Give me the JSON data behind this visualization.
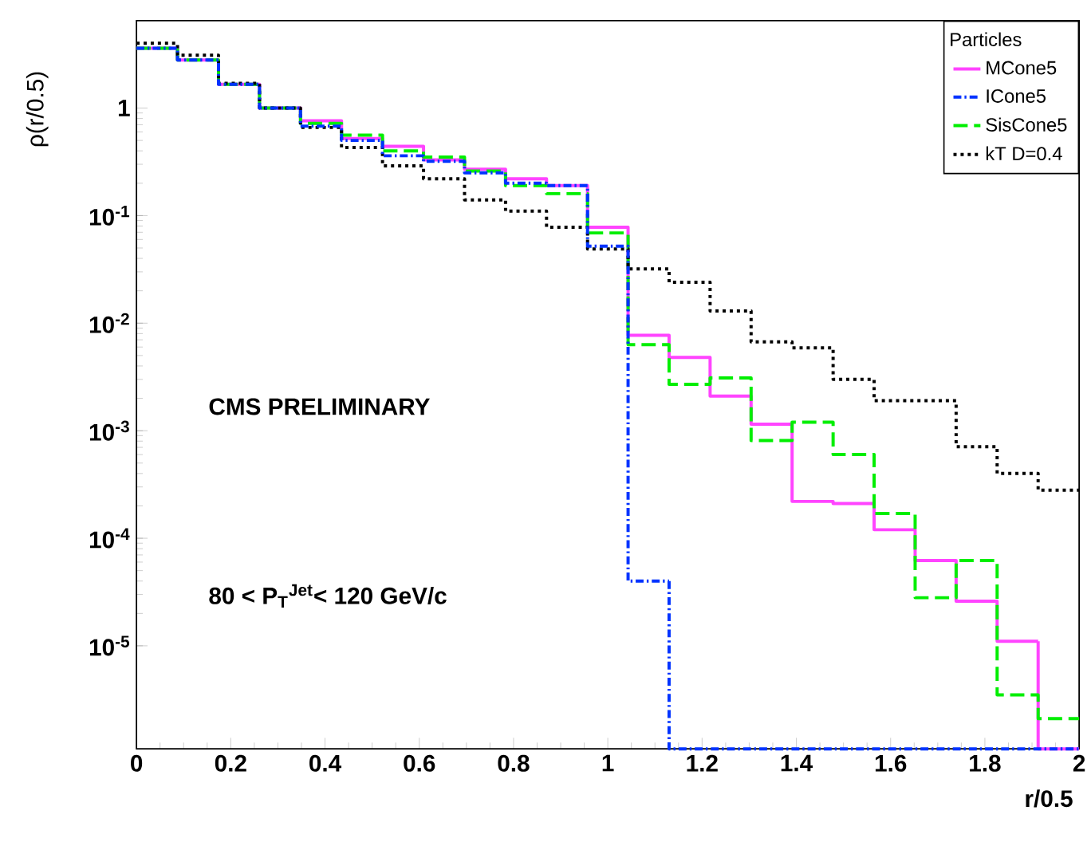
{
  "chart_data": {
    "type": "histogram",
    "xlabel": "r/0.5",
    "ylabel": "ρ(r/0.5)",
    "legend_title": "Particles",
    "annotations": [
      "CMS PRELIMINARY",
      "80 < P$_{T}$$^{Jet}$< 120 GeV/c"
    ],
    "bins": [
      0,
      0.087,
      0.174,
      0.261,
      0.348,
      0.435,
      0.522,
      0.609,
      0.696,
      0.783,
      0.87,
      0.957,
      1.043,
      1.13,
      1.217,
      1.304,
      1.391,
      1.478,
      1.565,
      1.652,
      1.739,
      1.826,
      1.913,
      2
    ],
    "series": [
      {
        "name": "MCone5",
        "color": "#ff44ff",
        "line_style": "solid",
        "values": [
          3.6,
          2.8,
          1.66,
          1.0,
          0.76,
          0.52,
          0.44,
          0.33,
          0.27,
          0.22,
          0.19,
          0.078,
          0.0077,
          0.0048,
          0.0021,
          0.00115,
          0.00022,
          0.00021,
          0.00012,
          6.2e-05,
          2.6e-05,
          1.1e-05,
          null
        ]
      },
      {
        "name": "ICone5",
        "color": "#0033ff",
        "line_style": "dashdot",
        "values": [
          3.6,
          2.8,
          1.66,
          1.0,
          0.68,
          0.5,
          0.36,
          0.32,
          0.25,
          0.2,
          0.19,
          0.052,
          4e-05,
          null,
          null,
          null,
          null,
          null,
          null,
          null,
          null,
          null,
          null
        ]
      },
      {
        "name": "SisCone5",
        "color": "#00ee00",
        "line_style": "dashed",
        "values": [
          3.6,
          2.8,
          1.66,
          1.0,
          0.72,
          0.56,
          0.4,
          0.35,
          0.26,
          0.19,
          0.16,
          0.069,
          0.0063,
          0.0027,
          0.0031,
          0.00081,
          0.0012,
          0.0006,
          0.00017,
          2.8e-05,
          6.2e-05,
          3.5e-06,
          2.1e-06
        ]
      },
      {
        "name": "kT D=0.4",
        "color": "#000000",
        "line_style": "dotted",
        "values": [
          4.0,
          3.1,
          1.7,
          1.0,
          0.66,
          0.43,
          0.29,
          0.22,
          0.14,
          0.11,
          0.078,
          0.049,
          0.032,
          0.024,
          0.013,
          0.0067,
          0.0059,
          0.003,
          0.0019,
          0.0019,
          0.00071,
          0.0004,
          0.00028
        ]
      }
    ],
    "xlim": [
      0,
      2
    ],
    "ylim": [
      1.1e-06,
      6.5
    ],
    "log": "y",
    "xticks": [
      0,
      0.2,
      0.4,
      0.6,
      0.8,
      1,
      1.2,
      1.4,
      1.6,
      1.8,
      2
    ],
    "yticks": [
      {
        "value": 1e-05,
        "label": "10$^{-5}$"
      },
      {
        "value": 0.0001,
        "label": "10$^{-4}$"
      },
      {
        "value": 0.001,
        "label": "10$^{-3}$"
      },
      {
        "value": 0.01,
        "label": "10$^{-2}$"
      },
      {
        "value": 0.1,
        "label": "10$^{-1}$"
      },
      {
        "value": 1,
        "label": "1"
      }
    ],
    "grid": false,
    "legend": "top right"
  }
}
